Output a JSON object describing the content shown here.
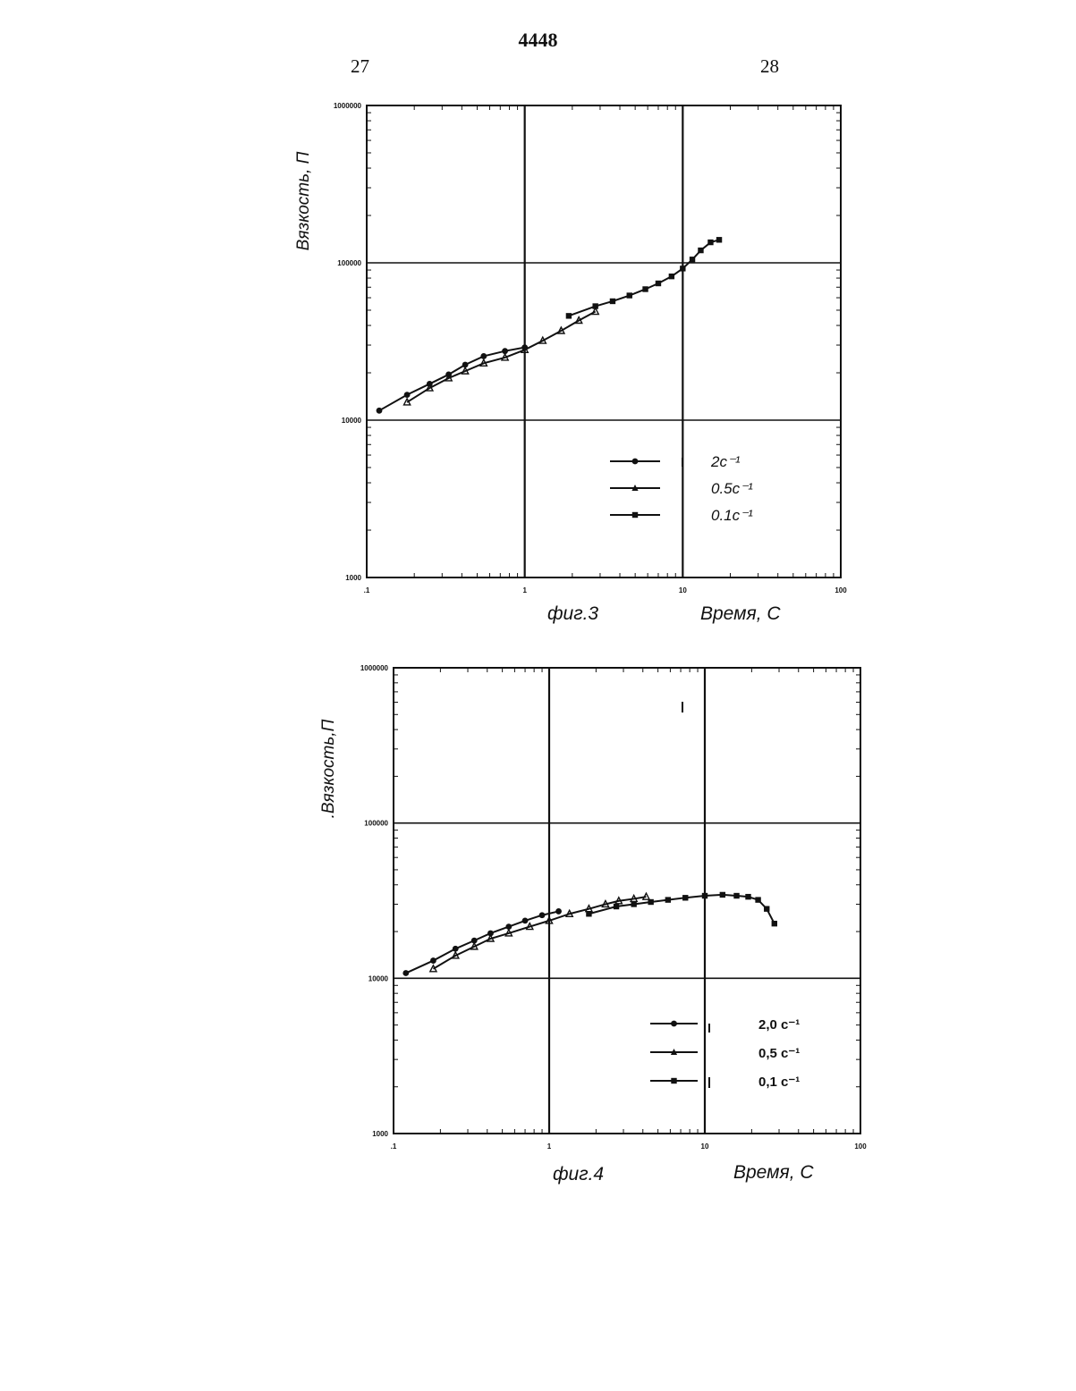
{
  "header": {
    "doc_number": "4448",
    "page_left": "27",
    "page_right": "28"
  },
  "chart_data": [
    {
      "type": "line",
      "caption": "фиг.3",
      "xlabel": "Время, С",
      "ylabel": "Вязкость, П",
      "x_scale": "log",
      "y_scale": "log",
      "xlim": [
        0.1,
        100
      ],
      "ylim": [
        1000,
        1000000
      ],
      "x_tick_labels": [
        ".1",
        "1",
        "10",
        "100"
      ],
      "y_tick_labels": [
        "1000",
        "10000",
        "100000",
        "1000000"
      ],
      "grid": true,
      "legend_position": "bottom-right",
      "series": [
        {
          "name": "2c⁻¹",
          "marker": "circle",
          "x": [
            0.12,
            0.18,
            0.25,
            0.33,
            0.42,
            0.55,
            0.75,
            1.0
          ],
          "y": [
            11500,
            14500,
            17000,
            19500,
            22500,
            25500,
            27500,
            29000
          ]
        },
        {
          "name": "0.5c⁻¹",
          "marker": "triangle",
          "x": [
            0.18,
            0.25,
            0.33,
            0.42,
            0.55,
            0.75,
            1.0,
            1.3,
            1.7,
            2.2,
            2.8
          ],
          "y": [
            13000,
            16000,
            18500,
            20500,
            23000,
            25000,
            28000,
            32000,
            37000,
            43000,
            49000
          ]
        },
        {
          "name": "0.1c⁻¹",
          "marker": "square",
          "x": [
            1.9,
            2.8,
            3.6,
            4.6,
            5.8,
            7.0,
            8.5,
            10.0,
            11.5,
            13.0,
            15.0,
            17.0
          ],
          "y": [
            46000,
            53000,
            57000,
            62000,
            68000,
            74000,
            82000,
            92000,
            105000,
            120000,
            135000,
            140000
          ]
        }
      ]
    },
    {
      "type": "line",
      "caption": "фиг.4",
      "xlabel": "Время, С",
      "ylabel": ".Вязкость,П",
      "x_scale": "log",
      "y_scale": "log",
      "xlim": [
        0.1,
        100
      ],
      "ylim": [
        1000,
        1000000
      ],
      "x_tick_labels": [
        ".1",
        "1",
        "10",
        "100"
      ],
      "y_tick_labels": [
        "1000",
        "10000",
        "100000",
        "1000000"
      ],
      "grid": true,
      "legend_position": "bottom-right",
      "series": [
        {
          "name": "2,0 c⁻¹",
          "marker": "circle",
          "x": [
            0.12,
            0.18,
            0.25,
            0.33,
            0.42,
            0.55,
            0.7,
            0.9,
            1.15
          ],
          "y": [
            10800,
            13000,
            15500,
            17500,
            19500,
            21500,
            23500,
            25500,
            27000
          ]
        },
        {
          "name": "0,5 c⁻¹",
          "marker": "triangle",
          "x": [
            0.18,
            0.25,
            0.33,
            0.42,
            0.55,
            0.75,
            1.0,
            1.35,
            1.8,
            2.3,
            2.8,
            3.5,
            4.2
          ],
          "y": [
            11500,
            14000,
            16000,
            18000,
            19500,
            21500,
            23500,
            26000,
            28000,
            30000,
            31500,
            32500,
            33500
          ]
        },
        {
          "name": "0,1 c⁻¹",
          "marker": "square",
          "x": [
            1.8,
            2.7,
            3.5,
            4.5,
            5.8,
            7.5,
            10.0,
            13.0,
            16.0,
            19.0,
            22.0,
            25.0,
            28.0
          ],
          "y": [
            26000,
            29000,
            30000,
            31000,
            32000,
            33000,
            34000,
            34500,
            34000,
            33500,
            32000,
            28000,
            22500
          ]
        }
      ]
    }
  ]
}
